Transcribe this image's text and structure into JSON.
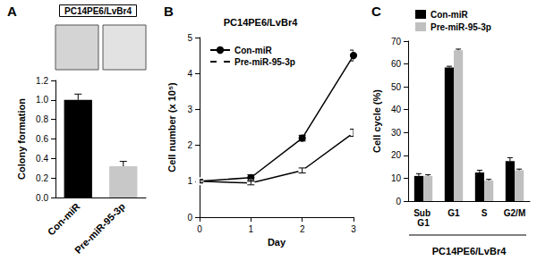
{
  "chart_data": [
    {
      "panel_label": "A",
      "type": "bar",
      "title": "PC14PE6/LvBr4",
      "categories": [
        "Con-miR",
        "Pre-miR-95-3p"
      ],
      "values": [
        1.0,
        0.32
      ],
      "errors": [
        0.06,
        0.05
      ],
      "colors": [
        "#000000",
        "#c8c8c8"
      ],
      "y_label": "Colony formation",
      "ylim": [
        0,
        1.2
      ],
      "yticks": [
        {
          "value": 0,
          "label": "0.0"
        },
        0.2,
        0.4,
        0.6,
        0.8,
        {
          "value": 1,
          "label": "1.0"
        },
        1.2
      ],
      "grid": false
    },
    {
      "panel_label": "B",
      "type": "line",
      "title": "PC14PE6/LvBr4",
      "x": [
        0,
        1,
        2,
        3
      ],
      "series": [
        {
          "name": "Con-miR",
          "color": "#000000",
          "marker": "filled_circle",
          "values": [
            1.0,
            1.1,
            2.2,
            4.5
          ],
          "errors": [
            0.05,
            0.08,
            0.08,
            0.15
          ]
        },
        {
          "name": "Pre-miR-95-3p",
          "color": "#000000",
          "marker": "open_circle",
          "values": [
            1.0,
            0.95,
            1.3,
            2.35
          ],
          "errors": [
            0.03,
            0.05,
            0.07,
            0.1
          ]
        }
      ],
      "x_label": "Day",
      "y_label": "Cell number (x 10⁵)",
      "xlim": [
        0,
        3
      ],
      "xticks": [
        0,
        1,
        2,
        3
      ],
      "ylim": [
        0,
        5
      ],
      "yticks": [
        0,
        1,
        2,
        3,
        4,
        5
      ],
      "legend": "upper left",
      "grid": false
    },
    {
      "panel_label": "C",
      "type": "bar",
      "categories": [
        "Sub G1",
        "G1",
        "S",
        "G2/M"
      ],
      "series": [
        {
          "name": "Con-miR",
          "color": "#000000",
          "values": [
            11,
            58.5,
            12.5,
            17.5
          ],
          "errors": [
            1,
            0.5,
            1,
            1.5
          ]
        },
        {
          "name": "Pre-miR-95-3p",
          "color": "#c0c0c0",
          "values": [
            11,
            66,
            9,
            13.5
          ],
          "errors": [
            0.5,
            0.5,
            0.5,
            0.5
          ]
        }
      ],
      "x_label": "PC14PE6/LvBr4",
      "y_label": "Cell cycle (%)",
      "ylim": [
        0,
        70
      ],
      "yticks": [
        0,
        10,
        20,
        30,
        40,
        50,
        60,
        70
      ],
      "legend": "upper left",
      "grid": false
    }
  ]
}
